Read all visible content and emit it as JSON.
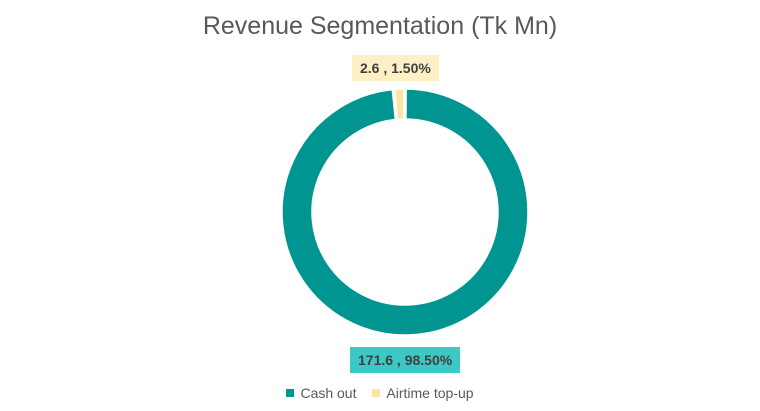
{
  "chart_data": {
    "type": "pie",
    "donut": true,
    "title": "Revenue Segmentation (Tk Mn)",
    "slices": [
      {
        "name": "Cash out",
        "value": 171.6,
        "percent": 98.5,
        "label": "171.6 , 98.50%",
        "color": "#009590",
        "label_bg": "#3cc9c6"
      },
      {
        "name": "Airtime top-up",
        "value": 2.6,
        "percent": 1.5,
        "label": "2.6 , 1.50%",
        "color": "#fbe7a1",
        "label_bg": "#fdf0c4"
      }
    ],
    "legend": [
      "Cash out",
      "Airtime top-up"
    ],
    "legend_position": "bottom"
  }
}
